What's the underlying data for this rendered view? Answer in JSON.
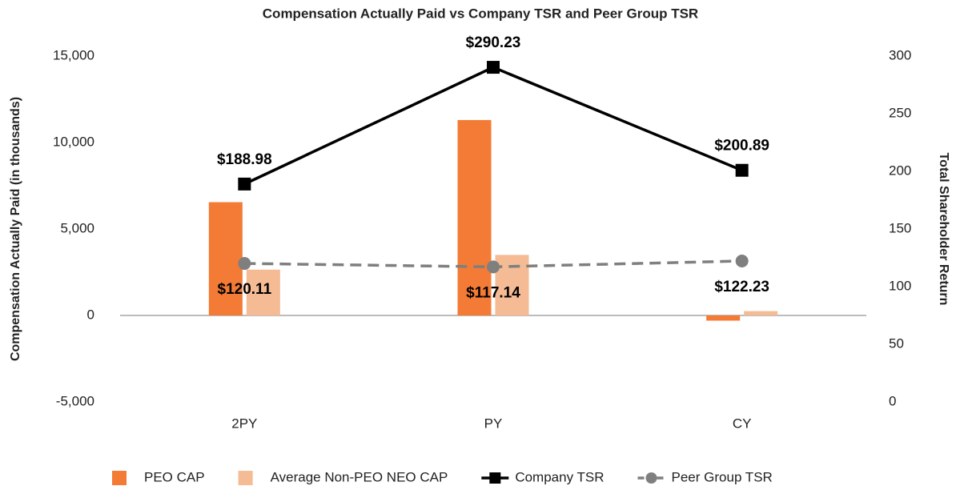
{
  "chart_data": {
    "type": "bar",
    "title": "Compensation Actually Paid vs Company TSR and Peer Group TSR",
    "y_label": "Compensation Actually Paid (in thousands)",
    "y2_label": "Total Shareholder Return",
    "categories": [
      "2PY",
      "PY",
      "CY"
    ],
    "ylim": [
      -5000,
      15000
    ],
    "yticks": [
      {
        "value": -5000,
        "label": "-5,000"
      },
      0,
      {
        "value": 5000,
        "label": "5,000"
      },
      {
        "value": 10000,
        "label": "10,000"
      },
      {
        "value": 15000,
        "label": "15,000"
      }
    ],
    "y2lim": [
      0,
      300
    ],
    "y2ticks": [
      0,
      50,
      100,
      150,
      200,
      250,
      300
    ],
    "legend": "bottom",
    "series": [
      {
        "name": "PEO CAP",
        "type": "bar",
        "color": "#f47b35",
        "values": [
          6550,
          11300,
          -300
        ]
      },
      {
        "name": "Average Non-PEO NEO CAP",
        "type": "bar",
        "color": "#f5bb94",
        "values": [
          2650,
          3500,
          250
        ]
      },
      {
        "name": "Company TSR",
        "type": "line",
        "axis": "y2",
        "color": "#000000",
        "marker": "square",
        "dashed": false,
        "label_side": "above",
        "values": [
          188.98,
          290.23,
          200.89
        ],
        "value_labels": [
          "$188.98",
          "$290.23",
          "$200.89"
        ]
      },
      {
        "name": "Peer Group TSR",
        "type": "line",
        "axis": "y2",
        "color": "#7f7f7f",
        "marker": "circle",
        "dashed": true,
        "label_side": "below",
        "values": [
          120.11,
          117.14,
          122.23
        ],
        "value_labels": [
          "$120.11",
          "$117.14",
          "$122.23"
        ]
      }
    ]
  }
}
